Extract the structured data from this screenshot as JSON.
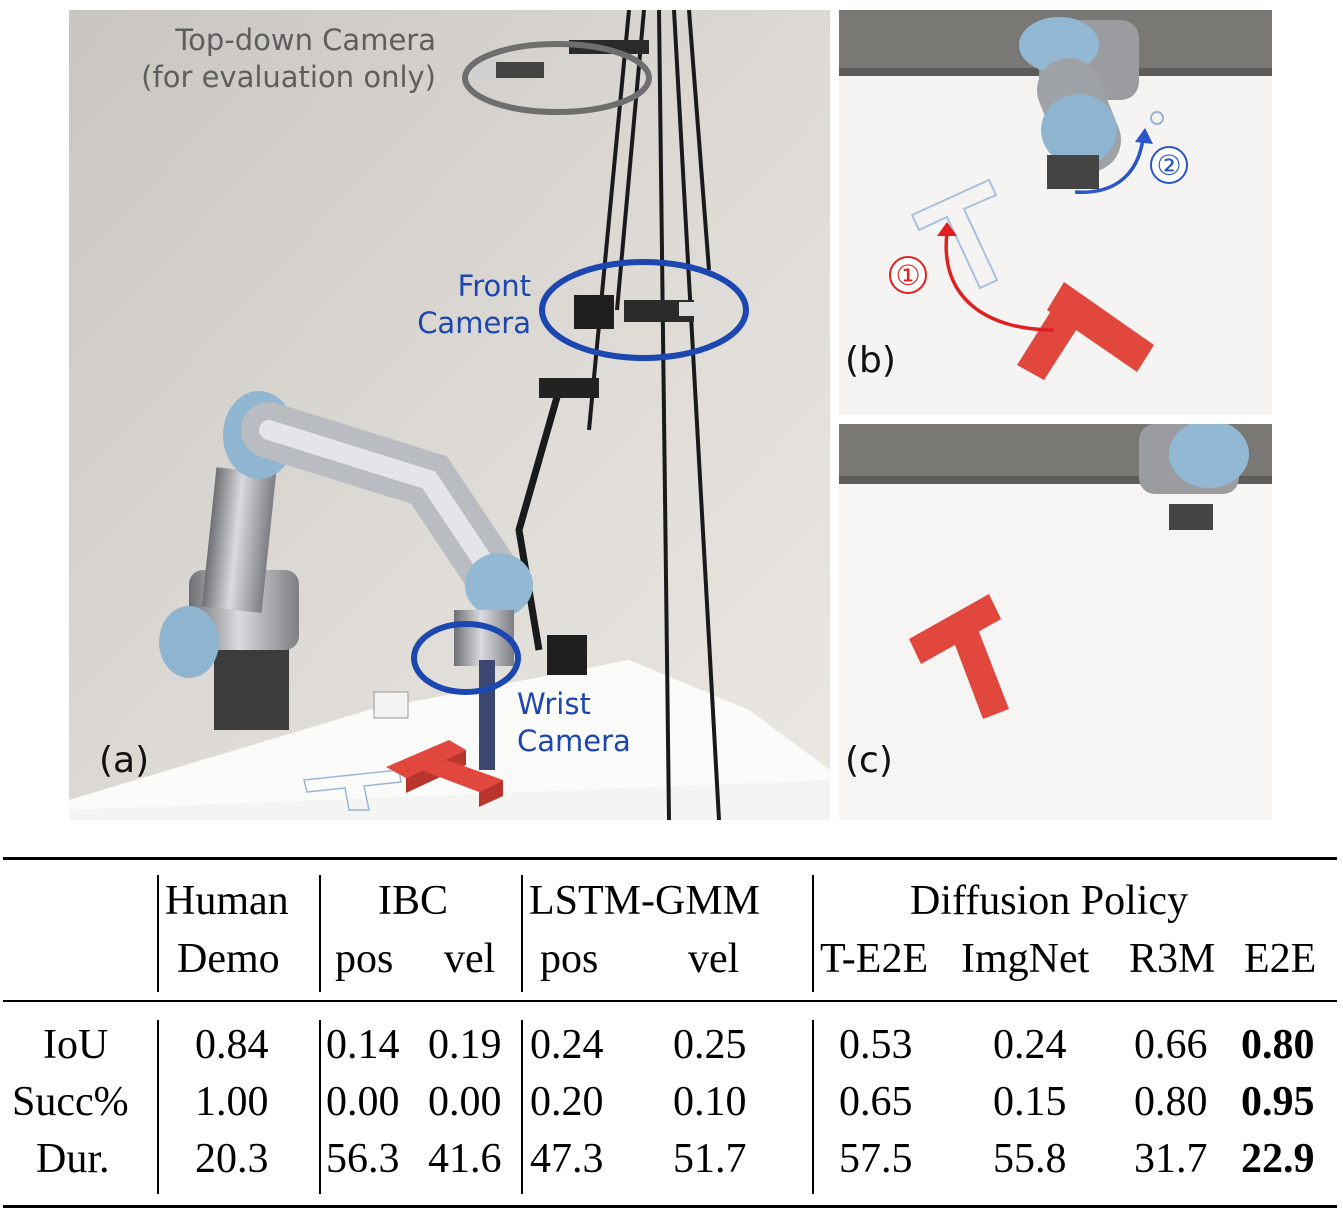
{
  "figure": {
    "panel_a": {
      "label": "(a)",
      "top_camera_label": [
        "Top-down Camera",
        "(for evaluation only)"
      ],
      "front_camera_label": [
        "Front",
        "Camera"
      ],
      "wrist_camera_label": [
        "Wrist",
        "Camera"
      ],
      "annotation_colors": {
        "gray": "#6e6e6e",
        "blue": "#1c47b0"
      }
    },
    "panel_b": {
      "label": "(b)",
      "step_1": "①",
      "step_2": "②",
      "arrow_colors": {
        "step_1": "#e02020",
        "step_2": "#2a55c9"
      }
    },
    "panel_c": {
      "label": "(c)"
    },
    "block_color": "#e2473d"
  },
  "table": {
    "header": {
      "human": [
        "Human",
        "Demo"
      ],
      "ibc": "IBC",
      "lstm_gmm": "LSTM-GMM",
      "diffusion_policy": "Diffusion Policy",
      "sub": {
        "ibc_pos": "pos",
        "ibc_vel": "vel",
        "lstm_pos": "pos",
        "lstm_vel": "vel",
        "t_e2e": "T-E2E",
        "imgnet": "ImgNet",
        "r3m": "R3M",
        "e2e": "E2E"
      }
    },
    "rows": [
      {
        "metric": "IoU",
        "values": [
          "0.84",
          "0.14",
          "0.19",
          "0.24",
          "0.25",
          "0.53",
          "0.24",
          "0.66",
          "0.80"
        ]
      },
      {
        "metric": "Succ%",
        "values": [
          "1.00",
          "0.00",
          "0.00",
          "0.20",
          "0.10",
          "0.65",
          "0.15",
          "0.80",
          "0.95"
        ]
      },
      {
        "metric": "Dur.",
        "values": [
          "20.3",
          "56.3",
          "41.6",
          "47.3",
          "51.7",
          "57.5",
          "55.8",
          "31.7",
          "22.9"
        ]
      }
    ],
    "best_column": "E2E"
  }
}
